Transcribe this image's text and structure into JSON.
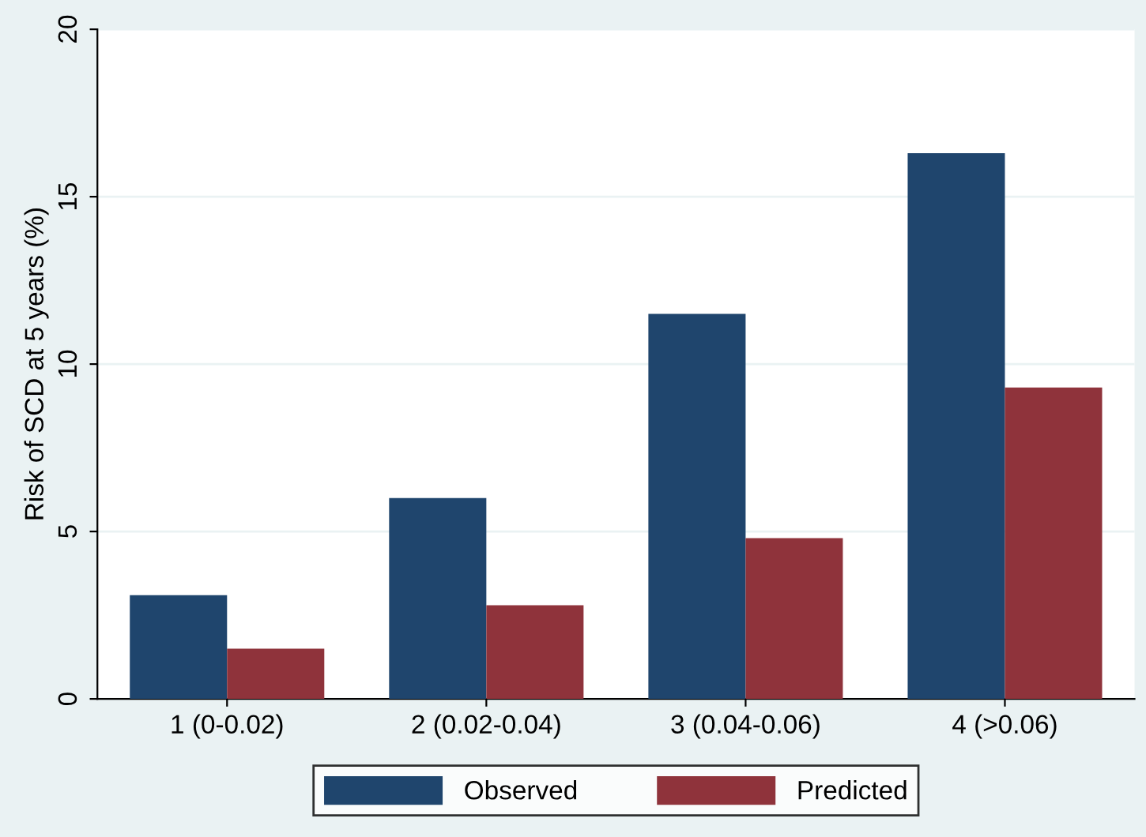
{
  "chart_data": {
    "type": "bar",
    "ylabel": "Risk of SCD at 5 years (%)",
    "categories": [
      "1 (0-0.02)",
      "2 (0.02-0.04)",
      "3 (0.04-0.06)",
      "4 (>0.06)"
    ],
    "series": [
      {
        "name": "Observed",
        "color": "#1f456d",
        "values": [
          3.1,
          6.0,
          11.5,
          16.3
        ]
      },
      {
        "name": "Predicted",
        "color": "#8f333b",
        "values": [
          1.5,
          2.8,
          4.8,
          9.3
        ]
      }
    ],
    "ylim": [
      0,
      20
    ],
    "yticks": [
      0,
      5,
      10,
      15,
      20
    ],
    "grid": "y",
    "legend": "bottom"
  }
}
